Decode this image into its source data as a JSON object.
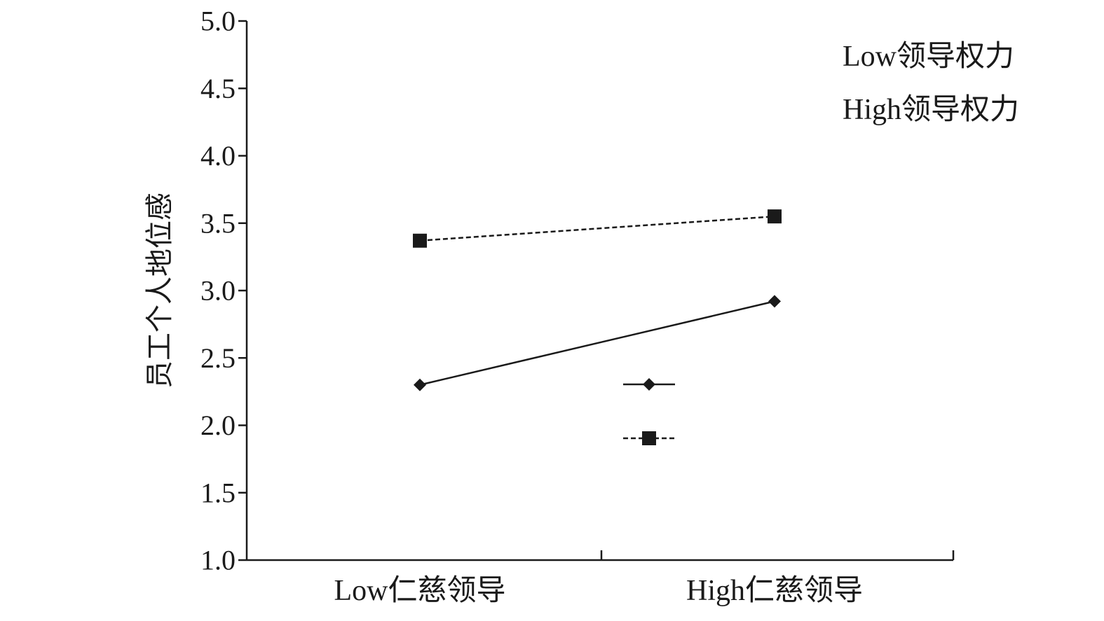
{
  "chart_data": {
    "type": "line",
    "title": "",
    "xlabel": "",
    "ylabel": "员工个人地位感",
    "categories": [
      "Low仁慈领导",
      "High仁慈领导"
    ],
    "ylim": [
      1.0,
      5.0
    ],
    "yticks": [
      "1.0",
      "1.5",
      "2.0",
      "2.5",
      "3.0",
      "3.5",
      "4.0",
      "4.5",
      "5.0"
    ],
    "series": [
      {
        "name": "Low领导权力",
        "values": [
          2.3,
          2.92
        ],
        "line_style": "solid",
        "marker": "diamond",
        "color": "#1a1a1a"
      },
      {
        "name": "High领导权力",
        "values": [
          3.37,
          3.55
        ],
        "line_style": "dashed",
        "marker": "square",
        "color": "#1a1a1a"
      }
    ],
    "legend_position": "top-right",
    "grid": false
  }
}
